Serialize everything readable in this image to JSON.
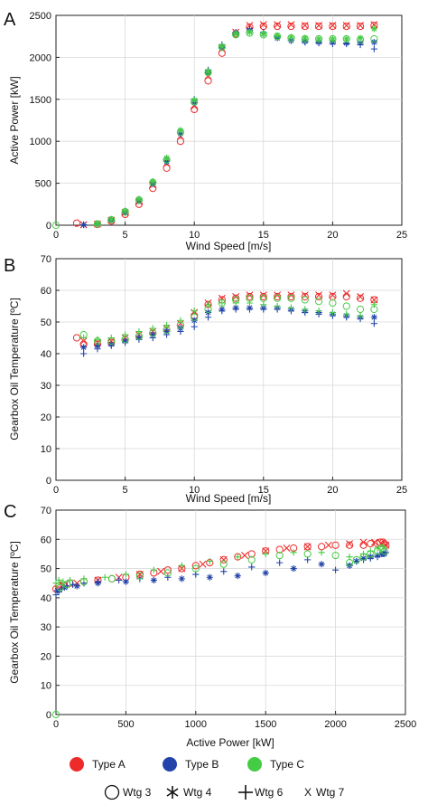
{
  "chart_data": [
    {
      "type": "scatter",
      "panel_label": "A",
      "xlabel": "Wind Speed [m/s]",
      "ylabel": "Active Power [kW]",
      "xlim": [
        0,
        25
      ],
      "ylim": [
        0,
        2500
      ],
      "xticks": [
        0,
        5,
        10,
        15,
        20,
        25
      ],
      "yticks": [
        0,
        500,
        1000,
        1500,
        2000,
        2500
      ],
      "grid": true,
      "series": [
        {
          "type_label": "Type A",
          "color": "#ee2b2b",
          "marker": "circle",
          "x": [
            1.5,
            3,
            4,
            5,
            6,
            7,
            8,
            9,
            10,
            11,
            12,
            13,
            14,
            15,
            16,
            17,
            18,
            19,
            20,
            21,
            22,
            23
          ],
          "y": [
            25,
            10,
            50,
            130,
            250,
            440,
            680,
            1000,
            1380,
            1720,
            2050,
            2280,
            2360,
            2370,
            2370,
            2370,
            2370,
            2370,
            2370,
            2370,
            2370,
            2380
          ]
        },
        {
          "type_label": "Type A",
          "color": "#ee2b2b",
          "marker": "x",
          "x": [
            2,
            3,
            4,
            5,
            6,
            7,
            8,
            9,
            10,
            11,
            12,
            13,
            14,
            15,
            16,
            17,
            18,
            19,
            20,
            21,
            22,
            23
          ],
          "y": [
            5,
            15,
            60,
            150,
            280,
            480,
            740,
            1060,
            1420,
            1780,
            2100,
            2300,
            2380,
            2390,
            2390,
            2390,
            2380,
            2380,
            2380,
            2380,
            2380,
            2390
          ]
        },
        {
          "type_label": "Type B",
          "color": "#2244aa",
          "marker": "plus",
          "x": [
            2,
            3,
            4,
            5,
            6,
            7,
            8,
            9,
            10,
            11,
            12,
            13,
            14,
            15,
            16,
            17,
            18,
            19,
            20,
            21,
            22,
            23
          ],
          "y": [
            5,
            20,
            70,
            170,
            310,
            520,
            800,
            1130,
            1500,
            1850,
            2150,
            2300,
            2340,
            2300,
            2250,
            2200,
            2180,
            2170,
            2160,
            2160,
            2150,
            2100
          ]
        },
        {
          "type_label": "Type B",
          "color": "#2244aa",
          "marker": "asterisk",
          "x": [
            2,
            3,
            4,
            5,
            6,
            7,
            8,
            9,
            10,
            11,
            12,
            13,
            14,
            15,
            16,
            17,
            18,
            19,
            20,
            21,
            22,
            23
          ],
          "y": [
            5,
            15,
            60,
            150,
            290,
            490,
            760,
            1090,
            1460,
            1820,
            2120,
            2290,
            2320,
            2280,
            2230,
            2200,
            2190,
            2180,
            2180,
            2170,
            2170,
            2180
          ]
        },
        {
          "type_label": "Type C",
          "color": "#44cc44",
          "marker": "circle",
          "x": [
            0,
            3,
            4,
            5,
            6,
            7,
            8,
            9,
            10,
            11,
            12,
            13,
            14,
            15,
            16,
            17,
            18,
            19,
            20,
            21,
            22,
            23
          ],
          "y": [
            0,
            15,
            65,
            160,
            300,
            510,
            780,
            1110,
            1470,
            1820,
            2120,
            2270,
            2290,
            2270,
            2250,
            2230,
            2220,
            2220,
            2220,
            2220,
            2210,
            2220
          ]
        },
        {
          "type_label": "Type C",
          "color": "#44cc44",
          "marker": "asterisk",
          "x": [
            3,
            4,
            5,
            6,
            7,
            8,
            9,
            10,
            11,
            12,
            13,
            14,
            15,
            16,
            17,
            18,
            19,
            20,
            21,
            22,
            23
          ],
          "y": [
            20,
            70,
            170,
            310,
            520,
            800,
            1130,
            1490,
            1830,
            2130,
            2280,
            2300,
            2280,
            2260,
            2240,
            2230,
            2220,
            2220,
            2220,
            2230,
            2340
          ]
        }
      ]
    },
    {
      "type": "scatter",
      "panel_label": "B",
      "xlabel": "Wind Speed [m/s]",
      "ylabel": "Gearbox Oil Temperature [ºC]",
      "xlim": [
        0,
        25
      ],
      "ylim": [
        0,
        70
      ],
      "xticks": [
        0,
        5,
        10,
        15,
        20,
        25
      ],
      "yticks": [
        0,
        10,
        20,
        30,
        40,
        50,
        60,
        70
      ],
      "grid": true,
      "series": [
        {
          "type_label": "Type A",
          "color": "#ee2b2b",
          "marker": "circle",
          "x": [
            1.5,
            2,
            3,
            4,
            5,
            6,
            7,
            8,
            9,
            10,
            11,
            12,
            13,
            14,
            15,
            16,
            17,
            18,
            19,
            20,
            21,
            22,
            23
          ],
          "y": [
            45,
            43,
            43,
            43.5,
            44.5,
            45.5,
            46.5,
            47.5,
            49,
            52,
            55.5,
            57,
            57.5,
            58,
            58,
            58,
            58,
            58,
            58,
            58,
            58,
            57.5,
            57
          ]
        },
        {
          "type_label": "Type A",
          "color": "#ee2b2b",
          "marker": "x",
          "x": [
            2,
            3,
            4,
            5,
            6,
            7,
            8,
            9,
            10,
            11,
            12,
            13,
            14,
            15,
            16,
            17,
            18,
            19,
            20,
            21,
            22,
            23
          ],
          "y": [
            44,
            43.5,
            44,
            45,
            46,
            47,
            48,
            49.5,
            53,
            56,
            57.5,
            58,
            58.5,
            58.5,
            58.5,
            58.5,
            58.5,
            58.5,
            58.5,
            59,
            58,
            57
          ]
        },
        {
          "type_label": "Type B",
          "color": "#2244aa",
          "marker": "plus",
          "x": [
            2,
            3,
            4,
            5,
            6,
            7,
            8,
            9,
            10,
            11,
            12,
            13,
            14,
            15,
            16,
            17,
            18,
            19,
            20,
            21,
            22,
            23
          ],
          "y": [
            40,
            41.5,
            42.5,
            43.5,
            44.5,
            45,
            46,
            47,
            48.5,
            51.5,
            53.5,
            54,
            54,
            54,
            54,
            53.5,
            53,
            52.5,
            52,
            51.5,
            51,
            49.5
          ]
        },
        {
          "type_label": "Type B",
          "color": "#2244aa",
          "marker": "asterisk",
          "x": [
            2,
            3,
            4,
            5,
            6,
            7,
            8,
            9,
            10,
            11,
            12,
            13,
            14,
            15,
            16,
            17,
            18,
            19,
            20,
            21,
            22,
            23
          ],
          "y": [
            42,
            42.5,
            43,
            44,
            45,
            46,
            47,
            48,
            50.5,
            53,
            54,
            54.5,
            54.5,
            54.5,
            54.5,
            54,
            53.5,
            53,
            52.5,
            52,
            51.5,
            51.5
          ]
        },
        {
          "type_label": "Type C",
          "color": "#44cc44",
          "marker": "circle",
          "x": [
            2,
            3,
            4,
            5,
            6,
            7,
            8,
            9,
            10,
            11,
            12,
            13,
            14,
            15,
            16,
            17,
            18,
            19,
            20,
            21,
            22,
            23
          ],
          "y": [
            46,
            44,
            44,
            44.5,
            45.5,
            46.5,
            47.5,
            49,
            51.5,
            54,
            56,
            57,
            57.5,
            57.5,
            57.5,
            57.5,
            57,
            56.5,
            56,
            55,
            54,
            54
          ]
        },
        {
          "type_label": "Type C",
          "color": "#44cc44",
          "marker": "plus",
          "x": [
            2,
            3,
            4,
            5,
            6,
            7,
            8,
            9,
            10,
            11,
            12,
            13,
            14,
            15,
            16,
            17,
            18,
            19,
            20,
            21,
            22,
            23
          ],
          "y": [
            45,
            44.5,
            45,
            46,
            47,
            48,
            49,
            50.5,
            53.5,
            55.5,
            56,
            56,
            56,
            55.5,
            55,
            54.5,
            54,
            53.5,
            53,
            52.5,
            52,
            55.5
          ]
        }
      ]
    },
    {
      "type": "scatter",
      "panel_label": "C",
      "xlabel": "Active Power [kW]",
      "ylabel": "Gearbox Oil Temperature [ºC]",
      "xlim": [
        0,
        2500
      ],
      "ylim": [
        0,
        70
      ],
      "xticks": [
        0,
        500,
        1000,
        1500,
        2000,
        2500
      ],
      "yticks": [
        0,
        10,
        20,
        30,
        40,
        50,
        60,
        70
      ],
      "grid": true,
      "series": [
        {
          "type_label": "Type A",
          "color": "#ee2b2b",
          "marker": "circle",
          "x": [
            0,
            20,
            50,
            100,
            200,
            300,
            400,
            500,
            600,
            700,
            800,
            900,
            1000,
            1100,
            1200,
            1300,
            1400,
            1500,
            1600,
            1700,
            1800,
            1900,
            2000,
            2100,
            2200,
            2250,
            2300,
            2320,
            2340,
            2350,
            2360
          ],
          "y": [
            43,
            44,
            44.5,
            45,
            45.5,
            46,
            46.5,
            47,
            48,
            48.5,
            49.5,
            50,
            51,
            52,
            53,
            54,
            55,
            56,
            56.5,
            57,
            57.5,
            57.5,
            58,
            58,
            58,
            58.5,
            58.5,
            59,
            59,
            58.5,
            58
          ]
        },
        {
          "type_label": "Type A",
          "color": "#ee2b2b",
          "marker": "x",
          "x": [
            50,
            150,
            300,
            450,
            600,
            750,
            900,
            1050,
            1200,
            1350,
            1500,
            1650,
            1800,
            1950,
            2100,
            2200,
            2280,
            2330,
            2360
          ],
          "y": [
            44.5,
            45,
            46,
            47,
            48,
            49,
            50,
            51.5,
            53,
            54.5,
            56,
            57,
            57.5,
            58,
            58.5,
            59,
            59,
            58.5,
            58
          ]
        },
        {
          "type_label": "Type B",
          "color": "#2244aa",
          "marker": "plus",
          "x": [
            0,
            20,
            40,
            80,
            120,
            200,
            300,
            450,
            600,
            800,
            1000,
            1200,
            1400,
            1600,
            1800,
            2000,
            2100,
            2150,
            2200,
            2250,
            2300,
            2340,
            2360
          ],
          "y": [
            41,
            42,
            43,
            44,
            44.5,
            45,
            45.5,
            46,
            46.5,
            47,
            48,
            49,
            50.5,
            52,
            53,
            49.5,
            51,
            52.5,
            53,
            53.5,
            54,
            55,
            55.5
          ]
        },
        {
          "type_label": "Type B",
          "color": "#2244aa",
          "marker": "asterisk",
          "x": [
            10,
            60,
            150,
            300,
            500,
            700,
            900,
            1100,
            1300,
            1500,
            1700,
            1900,
            2100,
            2150,
            2200,
            2250,
            2300,
            2330,
            2350
          ],
          "y": [
            42.5,
            43.5,
            44,
            45,
            45.5,
            46,
            46.5,
            47,
            47.5,
            48.5,
            50,
            51.5,
            51,
            52.5,
            53.5,
            54,
            54.5,
            55,
            55
          ]
        },
        {
          "type_label": "Type C",
          "color": "#44cc44",
          "marker": "circle",
          "x": [
            0,
            30,
            80,
            200,
            400,
            600,
            800,
            1000,
            1200,
            1400,
            1600,
            1800,
            2000,
            2100,
            2150,
            2200,
            2250,
            2300,
            2330,
            2350
          ],
          "y": [
            0,
            43.5,
            44.5,
            45.5,
            46.5,
            47.5,
            48.5,
            50,
            51.5,
            53,
            54.5,
            55,
            54.5,
            52,
            53,
            54,
            55,
            56,
            57,
            56
          ]
        },
        {
          "type_label": "Type C",
          "color": "#44cc44",
          "marker": "plus",
          "x": [
            0,
            20,
            50,
            100,
            200,
            350,
            500,
            700,
            900,
            1100,
            1300,
            1500,
            1700,
            1900,
            2100,
            2200,
            2250,
            2300,
            2340
          ],
          "y": [
            45,
            46,
            45.5,
            46,
            46.5,
            47,
            48,
            49.5,
            51,
            52.5,
            54,
            55,
            55.5,
            55.5,
            54,
            55,
            56,
            57,
            57.5
          ]
        }
      ]
    }
  ],
  "legend": {
    "types": [
      {
        "label": "Type A",
        "color": "#ee2b2b"
      },
      {
        "label": "Type B",
        "color": "#2244aa"
      },
      {
        "label": "Type C",
        "color": "#44cc44"
      }
    ],
    "turbines": [
      {
        "label": "Wtg 3",
        "marker": "circle"
      },
      {
        "label": "Wtg 4",
        "marker": "asterisk"
      },
      {
        "label": "Wtg 6",
        "marker": "plus"
      },
      {
        "label": "Wtg 7",
        "marker": "x"
      }
    ]
  }
}
